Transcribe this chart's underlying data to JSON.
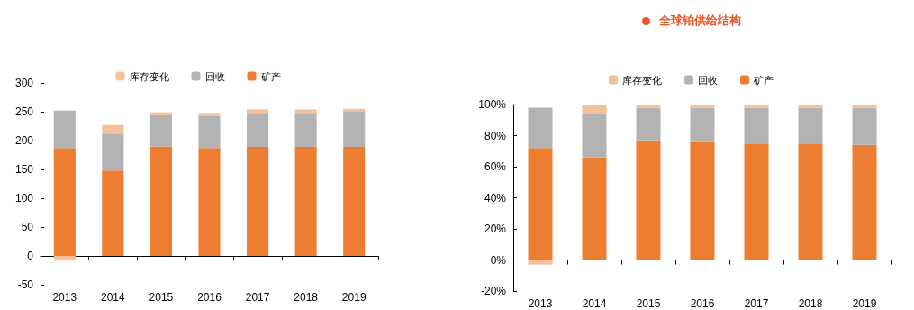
{
  "chart_data": [
    {
      "type": "bar",
      "stacked": true,
      "categories": [
        "2013",
        "2014",
        "2015",
        "2016",
        "2017",
        "2018",
        "2019"
      ],
      "legend": "top",
      "ylim": [
        -50,
        300
      ],
      "yticks": [
        -50,
        0,
        50,
        100,
        150,
        200,
        250,
        300
      ],
      "series": [
        {
          "name": "矿产",
          "color": "#ed7d31",
          "values": [
            187,
            148,
            190,
            187,
            189,
            189,
            189
          ]
        },
        {
          "name": "回收",
          "color": "#b3b3b3",
          "values": [
            65,
            64,
            54,
            56,
            59,
            59,
            61
          ]
        },
        {
          "name": "库存变化",
          "color": "#f8c09a",
          "values": [
            -8,
            15,
            5,
            5,
            6,
            6,
            5
          ]
        }
      ]
    },
    {
      "type": "bar",
      "stacked": true,
      "title": "全球铂供给结构",
      "categories": [
        "2013",
        "2014",
        "2015",
        "2016",
        "2017",
        "2018",
        "2019"
      ],
      "legend": "top",
      "ylim": [
        -20,
        100
      ],
      "yticks": [
        {
          "value": -20,
          "label": "-20%"
        },
        {
          "value": 0,
          "label": "0%"
        },
        {
          "value": 20,
          "label": "20%"
        },
        {
          "value": 40,
          "label": "40%"
        },
        {
          "value": 60,
          "label": "60%"
        },
        {
          "value": 80,
          "label": "80%"
        },
        {
          "value": 100,
          "label": "100%"
        }
      ],
      "series": [
        {
          "name": "矿产",
          "color": "#ed7d31",
          "values": [
            72,
            66,
            77,
            76,
            75,
            75,
            74
          ]
        },
        {
          "name": "回收",
          "color": "#b3b3b3",
          "values": [
            26,
            28,
            21,
            22,
            23,
            23,
            24
          ]
        },
        {
          "name": "库存变化",
          "color": "#f8c09a",
          "values": [
            -3,
            6,
            2,
            2,
            2,
            2,
            2
          ]
        }
      ]
    }
  ]
}
